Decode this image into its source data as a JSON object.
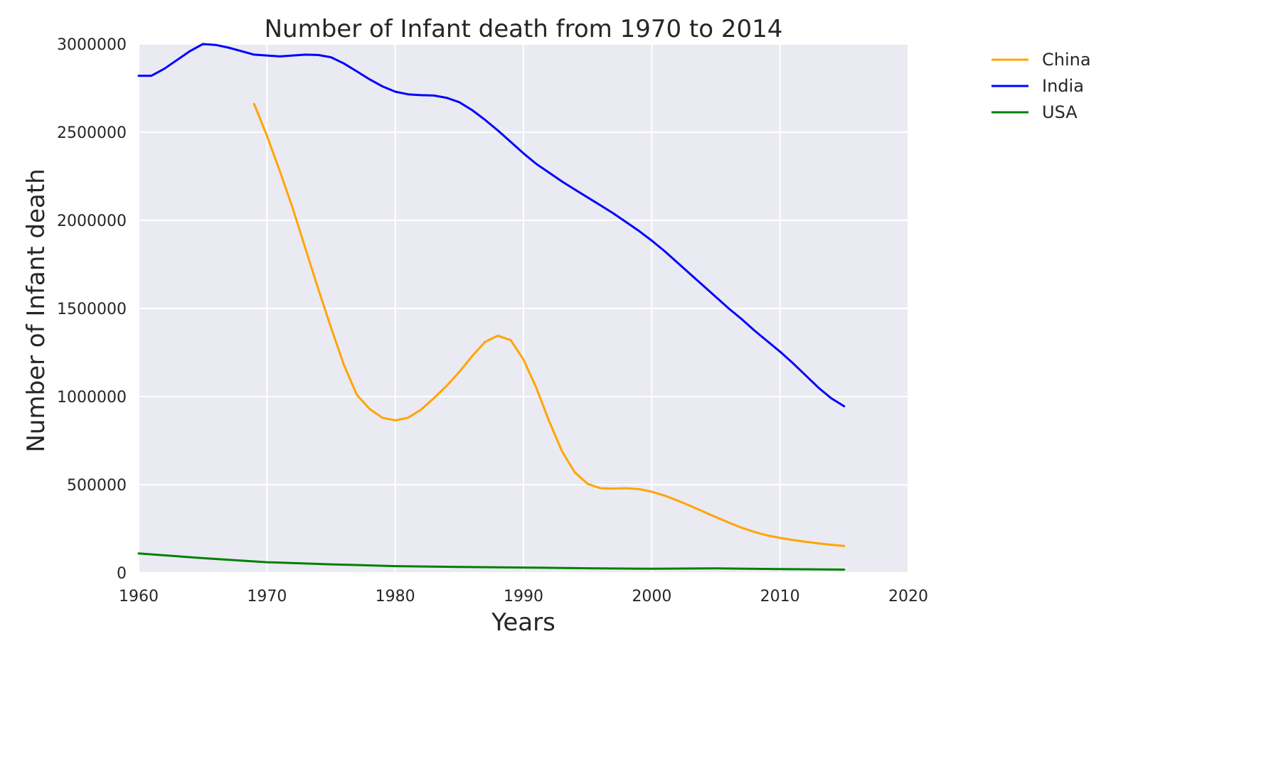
{
  "chart_data": {
    "type": "line",
    "title": "Number of Infant death from 1970 to 2014",
    "xlabel": "Years",
    "ylabel": "Number of Infant death",
    "xlim": [
      1960,
      2020
    ],
    "ylim": [
      0,
      3000000
    ],
    "xticks": [
      "1960",
      "1970",
      "1980",
      "1990",
      "2000",
      "2010",
      "2020"
    ],
    "yticks": [
      "0",
      "500000",
      "1000000",
      "1500000",
      "2000000",
      "2500000",
      "3000000"
    ],
    "grid": true,
    "legend_position": "outside-top-right",
    "series": [
      {
        "name": "China",
        "color": "#ffa500",
        "x": [
          1969,
          1970,
          1971,
          1972,
          1973,
          1974,
          1975,
          1976,
          1977,
          1978,
          1979,
          1980,
          1981,
          1982,
          1983,
          1984,
          1985,
          1986,
          1987,
          1988,
          1989,
          1990,
          1991,
          1992,
          1993,
          1994,
          1995,
          1996,
          1997,
          1998,
          1999,
          2000,
          2001,
          2002,
          2003,
          2004,
          2005,
          2006,
          2007,
          2008,
          2009,
          2010,
          2011,
          2012,
          2013,
          2014,
          2015
        ],
        "values": [
          2660000,
          2480000,
          2280000,
          2070000,
          1840000,
          1610000,
          1390000,
          1180000,
          1010000,
          930000,
          880000,
          865000,
          880000,
          925000,
          990000,
          1060000,
          1140000,
          1230000,
          1310000,
          1345000,
          1320000,
          1210000,
          1050000,
          860000,
          690000,
          570000,
          505000,
          480000,
          478000,
          480000,
          475000,
          460000,
          438000,
          410000,
          380000,
          348000,
          316000,
          285000,
          256000,
          232000,
          212000,
          198000,
          186000,
          176000,
          167000,
          159000,
          152000
        ]
      },
      {
        "name": "India",
        "color": "#0000ff",
        "x": [
          1960,
          1961,
          1962,
          1963,
          1964,
          1965,
          1966,
          1967,
          1968,
          1969,
          1970,
          1971,
          1972,
          1973,
          1974,
          1975,
          1976,
          1977,
          1978,
          1979,
          1980,
          1981,
          1982,
          1983,
          1984,
          1985,
          1986,
          1987,
          1988,
          1989,
          1990,
          1991,
          1992,
          1993,
          1994,
          1995,
          1996,
          1997,
          1998,
          1999,
          2000,
          2001,
          2002,
          2003,
          2004,
          2005,
          2006,
          2007,
          2008,
          2009,
          2010,
          2011,
          2012,
          2013,
          2014,
          2015
        ],
        "values": [
          2820000,
          2820000,
          2860000,
          2910000,
          2960000,
          3000000,
          2995000,
          2980000,
          2960000,
          2940000,
          2935000,
          2930000,
          2935000,
          2940000,
          2938000,
          2925000,
          2890000,
          2845000,
          2800000,
          2760000,
          2730000,
          2715000,
          2710000,
          2708000,
          2695000,
          2670000,
          2625000,
          2570000,
          2510000,
          2445000,
          2380000,
          2320000,
          2270000,
          2220000,
          2175000,
          2130000,
          2085000,
          2040000,
          1990000,
          1940000,
          1885000,
          1825000,
          1760000,
          1695000,
          1630000,
          1565000,
          1500000,
          1440000,
          1375000,
          1315000,
          1255000,
          1190000,
          1120000,
          1050000,
          990000,
          945000
        ]
      },
      {
        "name": "USA",
        "color": "#008000",
        "x": [
          1960,
          1965,
          1970,
          1975,
          1980,
          1985,
          1990,
          1995,
          2000,
          2005,
          2010,
          2015
        ],
        "values": [
          110000,
          83000,
          60000,
          48000,
          38000,
          33000,
          30000,
          26000,
          23000,
          25000,
          21000,
          18000
        ]
      }
    ]
  }
}
